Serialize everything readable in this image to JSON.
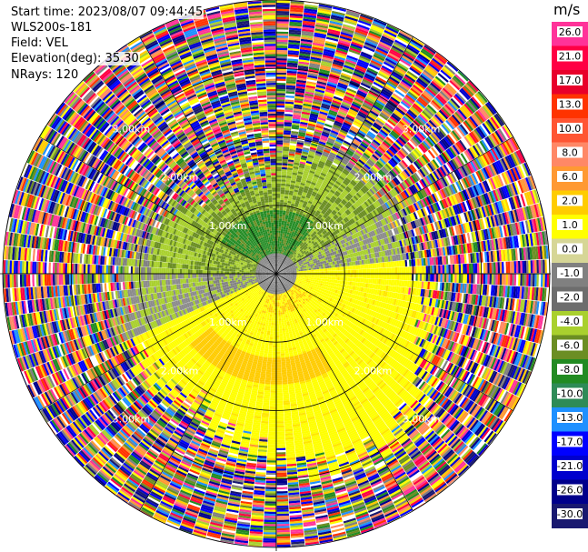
{
  "header": {
    "start_time": "Start time: 2023/08/07 09:44:45",
    "instrument": "WLS200s-181",
    "field": "Field: VEL",
    "elevation": "Elevation(deg): 35.30",
    "nrays": "NRays: 120"
  },
  "colorbar": {
    "unit": "m/s",
    "ticks": [
      "26.0",
      "21.0",
      "17.0",
      "13.0",
      "10.0",
      "8.0",
      "6.0",
      "2.0",
      "1.0",
      "0.0",
      "-1.0",
      "-2.0",
      "-4.0",
      "-6.0",
      "-8.0",
      "-10.0",
      "-13.0",
      "-17.0",
      "-21.0",
      "-26.0",
      "-30.0"
    ],
    "colors": [
      "#ff3399",
      "#ff0044",
      "#e8002a",
      "#ff3300",
      "#ff5533",
      "#ff8866",
      "#ff9933",
      "#ffcc00",
      "#ffff00",
      "#d6d696",
      "#808080",
      "#6d6d6d",
      "#a9d02e",
      "#6b8e23",
      "#228b22",
      "#2e8b57",
      "#1e90ff",
      "#0000ff",
      "#0000cd",
      "#00008b",
      "#191970"
    ]
  },
  "chart_data": {
    "type": "heatmap",
    "subtype": "ppi-polar",
    "field": "VEL",
    "unit": "m/s",
    "nrays": 120,
    "elevation_deg": 35.3,
    "range_ring_labels": [
      "1.00km",
      "2.00km",
      "3.00km"
    ],
    "rings": [
      {
        "label": "1.00km",
        "range_km": 1.0
      },
      {
        "label": "2.00km",
        "range_km": 2.0
      },
      {
        "label": "3.00km",
        "range_km": 3.0
      },
      {
        "label": "",
        "range_km": 4.0
      }
    ],
    "spoke_angles_deg": [
      0,
      30,
      60,
      90,
      120,
      150,
      180,
      210,
      240,
      270,
      300,
      330
    ],
    "colorbar_range": [
      -30.0,
      26.0
    ]
  }
}
